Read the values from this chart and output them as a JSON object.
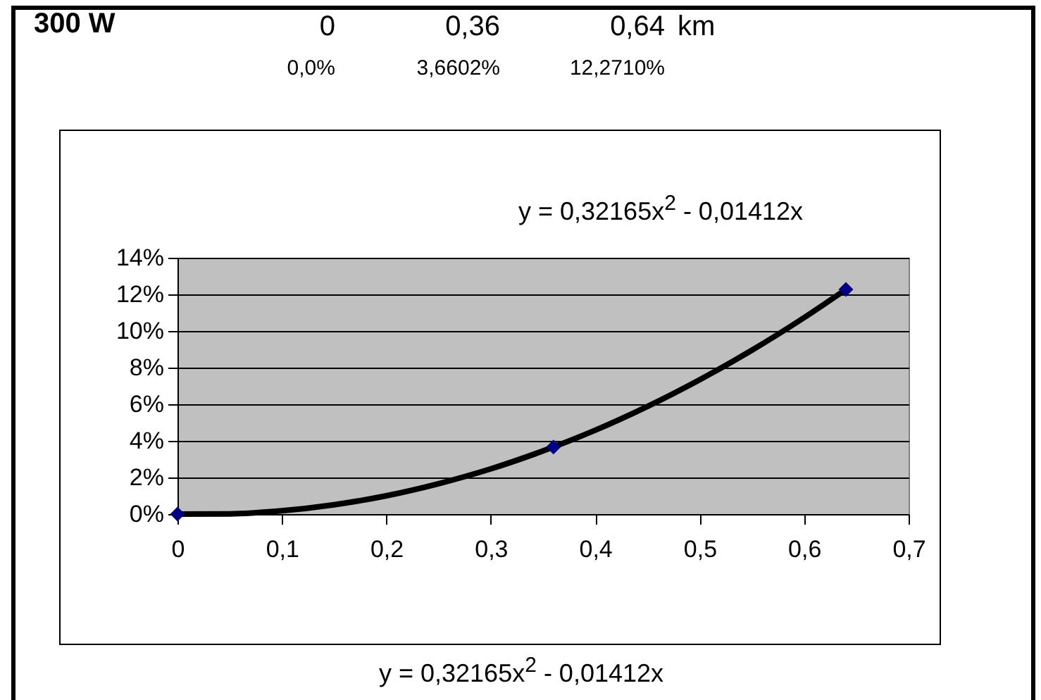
{
  "chart_data": {
    "type": "scatter",
    "annotations": [
      "300 W",
      "0",
      "0,36",
      "0,64",
      "km",
      "0,0%",
      "3,6602%",
      "12,2710%",
      "y = 0,32165x$^{2}$ - 0,01412x",
      "y = 0,32165x$^{2}$ - 0,01412x"
    ],
    "xlim": [
      0,
      0.7
    ],
    "xticks": [
      {
        "value": 0,
        "label": "0"
      },
      {
        "value": 0.1,
        "label": "0,1"
      },
      {
        "value": 0.2,
        "label": "0,2"
      },
      {
        "value": 0.3,
        "label": "0,3"
      },
      {
        "value": 0.4,
        "label": "0,4"
      },
      {
        "value": 0.5,
        "label": "0,5"
      },
      {
        "value": 0.6,
        "label": "0,6"
      },
      {
        "value": 0.7,
        "label": "0,7"
      }
    ],
    "ylim": [
      0,
      14
    ],
    "yticks": [
      {
        "value": 0,
        "label": "0%"
      },
      {
        "value": 2,
        "label": "2%"
      },
      {
        "value": 4,
        "label": "4%"
      },
      {
        "value": 6,
        "label": "6%"
      },
      {
        "value": 8,
        "label": "8%"
      },
      {
        "value": 10,
        "label": "10%"
      },
      {
        "value": 12,
        "label": "12%"
      },
      {
        "value": 14,
        "label": "14%"
      }
    ],
    "grid": "y",
    "marker": "diamond",
    "series": [
      {
        "type": "line",
        "color": "#000000",
        "line_style": "solid",
        "marker": "none",
        "x": [
          0,
          0.05,
          0.1,
          0.15,
          0.2,
          0.25,
          0.3,
          0.35,
          0.4,
          0.45,
          0.5,
          0.55,
          0.6,
          0.64
        ],
        "values": [
          0,
          0.01,
          0.18,
          0.51,
          1.0,
          1.66,
          2.47,
          3.45,
          4.58,
          5.88,
          7.34,
          8.95,
          10.73,
          12.27
        ]
      },
      {
        "color": "#000080",
        "x": [
          0,
          0.36,
          0.64
        ],
        "values": [
          0,
          3.66,
          12.27
        ]
      }
    ]
  }
}
